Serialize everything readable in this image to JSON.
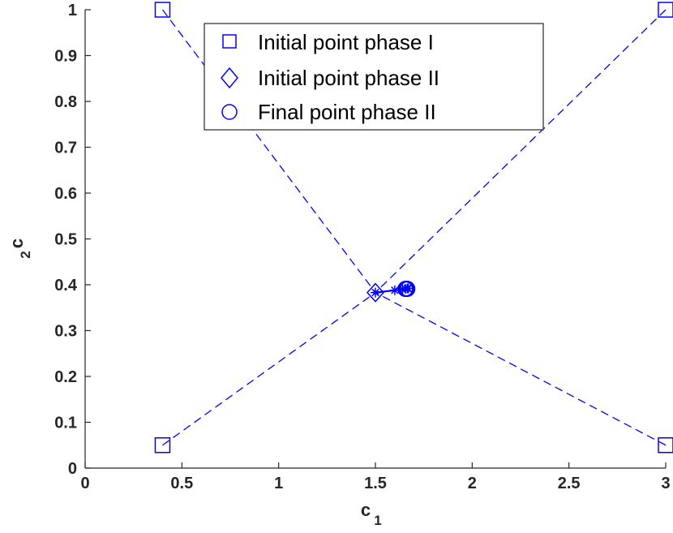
{
  "chart_data": {
    "type": "line",
    "xlabel": {
      "main": "c",
      "sub": "1"
    },
    "ylabel": {
      "main": "c",
      "sub": "2"
    },
    "xlim": [
      0,
      3
    ],
    "ylim": [
      0,
      1
    ],
    "xticks": [
      0,
      0.5,
      1,
      1.5,
      2,
      2.5,
      3
    ],
    "xtick_labels": [
      "0",
      "0.5",
      "1",
      "1.5",
      "2",
      "2.5",
      "3"
    ],
    "yticks": [
      0,
      0.1,
      0.2,
      0.3,
      0.4,
      0.5,
      0.6,
      0.7,
      0.8,
      0.9,
      1
    ],
    "ytick_labels": [
      "0",
      "0.1",
      "0.2",
      "0.3",
      "0.4",
      "0.5",
      "0.6",
      "0.7",
      "0.8",
      "0.9",
      "1"
    ],
    "grid": false,
    "legend_position": "top-center",
    "color": "#0000ff",
    "series": [
      {
        "name": "Initial point phase I",
        "marker": "square",
        "points": [
          [
            0.4,
            1.0
          ],
          [
            3.0,
            1.0
          ],
          [
            0.4,
            0.05
          ],
          [
            3.0,
            0.05
          ]
        ]
      },
      {
        "name": "Initial point phase II",
        "marker": "diamond",
        "points": [
          [
            1.5,
            0.383
          ]
        ]
      },
      {
        "name": "Final point phase II",
        "marker": "circle",
        "points": [
          [
            1.655,
            0.391
          ],
          [
            1.66,
            0.391
          ],
          [
            1.665,
            0.391
          ]
        ]
      }
    ],
    "dashed_lines": [
      {
        "from": [
          0.4,
          1.0
        ],
        "to": [
          1.5,
          0.383
        ]
      },
      {
        "from": [
          3.0,
          1.0
        ],
        "to": [
          1.5,
          0.383
        ]
      },
      {
        "from": [
          0.4,
          0.05
        ],
        "to": [
          1.5,
          0.383
        ]
      },
      {
        "from": [
          3.0,
          0.05
        ],
        "to": [
          1.5,
          0.383
        ]
      }
    ],
    "path": {
      "marker": "asterisk",
      "points": [
        [
          1.5,
          0.383
        ],
        [
          1.6,
          0.388
        ],
        [
          1.64,
          0.39
        ],
        [
          1.655,
          0.391
        ],
        [
          1.665,
          0.392
        ],
        [
          1.67,
          0.392
        ]
      ]
    }
  }
}
